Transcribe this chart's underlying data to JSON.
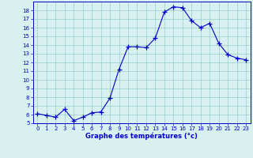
{
  "x": [
    0,
    1,
    2,
    3,
    4,
    5,
    6,
    7,
    8,
    9,
    10,
    11,
    12,
    13,
    14,
    15,
    16,
    17,
    18,
    19,
    20,
    21,
    22,
    23
  ],
  "y": [
    6.1,
    5.9,
    5.7,
    6.6,
    5.3,
    5.7,
    6.2,
    6.3,
    7.9,
    11.2,
    13.8,
    13.8,
    13.7,
    14.8,
    17.8,
    18.4,
    18.3,
    16.8,
    16.0,
    16.5,
    14.2,
    12.9,
    12.5,
    12.3
  ],
  "line_color": "#0000cc",
  "marker": "+",
  "marker_size": 4,
  "bg_color": "#d8f0f0",
  "grid_color": "#99cccc",
  "xlabel": "Graphe des températures (°c)",
  "tick_color": "#0000cc",
  "ylim": [
    5,
    19
  ],
  "xlim": [
    -0.5,
    23.5
  ],
  "yticks": [
    5,
    6,
    7,
    8,
    9,
    10,
    11,
    12,
    13,
    14,
    15,
    16,
    17,
    18
  ],
  "xticks": [
    0,
    1,
    2,
    3,
    4,
    5,
    6,
    7,
    8,
    9,
    10,
    11,
    12,
    13,
    14,
    15,
    16,
    17,
    18,
    19,
    20,
    21,
    22,
    23
  ],
  "spine_color": "#0000cc",
  "figure_bg": "#d8f0f0"
}
